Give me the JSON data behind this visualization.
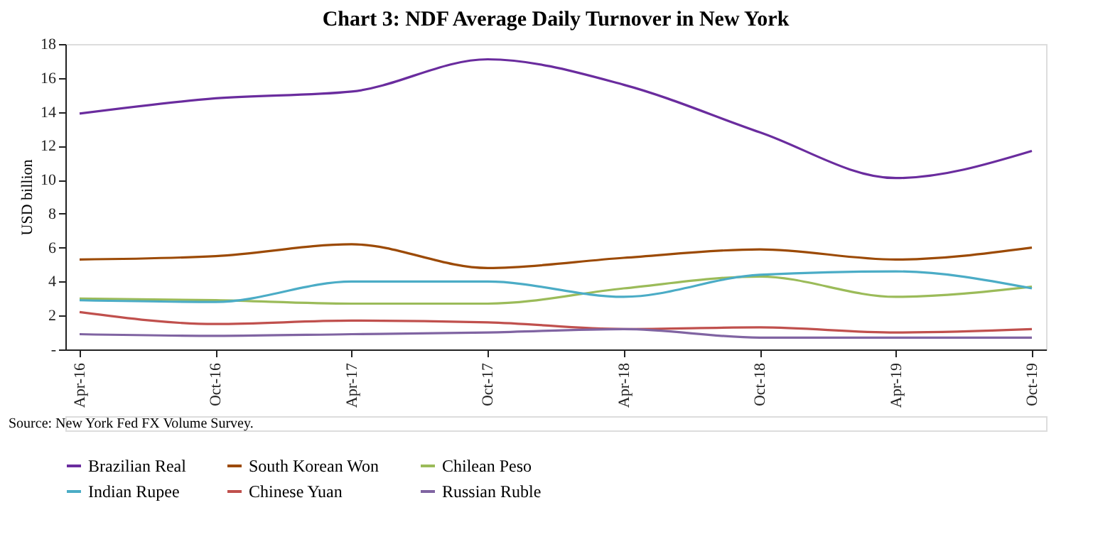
{
  "chart_data": {
    "type": "line",
    "title": "Chart 3: NDF Average Daily Turnover in New York",
    "ylabel": "USD billion",
    "categories": [
      "Apr-16",
      "Oct-16",
      "Apr-17",
      "Oct-17",
      "Apr-18",
      "Oct-18",
      "Apr-19",
      "Oct-19"
    ],
    "series": [
      {
        "name": "Brazilian Real",
        "color": "#6a2c9e",
        "values": [
          13.9,
          14.8,
          15.2,
          17.1,
          15.6,
          12.8,
          10.1,
          11.7
        ]
      },
      {
        "name": "South Korean Won",
        "color": "#9c4a05",
        "values": [
          5.3,
          5.5,
          6.2,
          4.8,
          5.4,
          5.9,
          5.3,
          6.0
        ]
      },
      {
        "name": "Chilean Peso",
        "color": "#9bbb59",
        "values": [
          3.0,
          2.9,
          2.7,
          2.7,
          3.6,
          4.3,
          3.1,
          3.7
        ]
      },
      {
        "name": "Indian Rupee",
        "color": "#4bacc6",
        "values": [
          2.9,
          2.8,
          4.0,
          4.0,
          3.1,
          4.4,
          4.6,
          3.6
        ]
      },
      {
        "name": "Chinese Yuan",
        "color": "#c0504d",
        "values": [
          2.2,
          1.5,
          1.7,
          1.6,
          1.2,
          1.3,
          1.0,
          1.2
        ]
      },
      {
        "name": "Russian Ruble",
        "color": "#8064a2",
        "values": [
          0.9,
          0.8,
          0.9,
          1.0,
          1.2,
          0.7,
          0.7,
          0.7
        ]
      }
    ],
    "ylim": [
      0,
      18
    ],
    "yticks": [
      {
        "value": 0,
        "label": "-"
      },
      2,
      4,
      6,
      8,
      10,
      12,
      14,
      16,
      18
    ],
    "grid": false,
    "legend": "bottom",
    "marker": "none",
    "line_style": "solid",
    "annotations": [
      "Source: New York Fed FX Volume Survey."
    ]
  }
}
